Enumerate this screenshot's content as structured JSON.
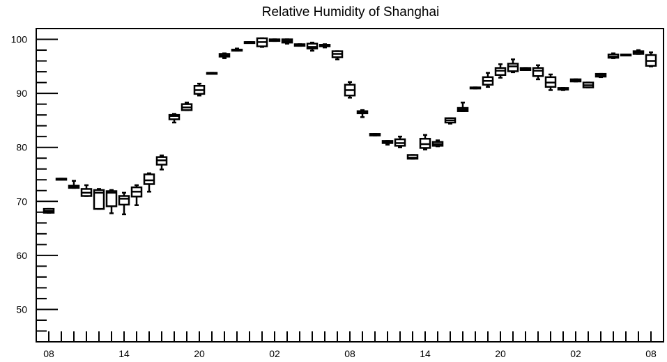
{
  "chart_data": {
    "type": "box",
    "title": "Relative Humidity of Shanghai",
    "xlabel": "",
    "ylabel": "",
    "ylim": [
      44.0,
      102.0
    ],
    "grid": false,
    "legend": "none",
    "x_tick_labels": [
      "08",
      "14",
      "20",
      "02",
      "08",
      "14",
      "20",
      "02",
      "08"
    ],
    "x_tick_positions": [
      0,
      6,
      12,
      18,
      24,
      30,
      36,
      42,
      48
    ],
    "y_ticks": [
      50,
      60,
      70,
      80,
      90,
      100
    ],
    "y_tick_labels": [
      "50",
      "60",
      "70",
      "80",
      "90",
      "100"
    ],
    "boxes": [
      {
        "x": 0,
        "min": 67.9,
        "q1": 67.9,
        "median": 68.2,
        "q3": 68.6,
        "max": 68.6
      },
      {
        "x": 1,
        "min": 74.0,
        "q1": 74.0,
        "median": 74.2,
        "q3": 74.2,
        "max": 74.2
      },
      {
        "x": 2,
        "min": 72.5,
        "q1": 72.5,
        "median": 72.7,
        "q3": 72.9,
        "max": 73.8
      },
      {
        "x": 3,
        "min": 71.0,
        "q1": 71.0,
        "median": 71.6,
        "q3": 72.3,
        "max": 73.0
      },
      {
        "x": 4,
        "min": 68.6,
        "q1": 68.6,
        "median": 71.6,
        "q3": 72.1,
        "max": 72.3
      },
      {
        "x": 5,
        "min": 67.8,
        "q1": 69.1,
        "median": 71.6,
        "q3": 71.9,
        "max": 72.1
      },
      {
        "x": 6,
        "min": 67.6,
        "q1": 69.4,
        "median": 70.5,
        "q3": 71.0,
        "max": 71.6
      },
      {
        "x": 7,
        "min": 69.3,
        "q1": 70.9,
        "median": 71.8,
        "q3": 72.6,
        "max": 73.0
      },
      {
        "x": 8,
        "min": 71.8,
        "q1": 73.2,
        "median": 73.9,
        "q3": 75.0,
        "max": 75.2
      },
      {
        "x": 9,
        "min": 75.9,
        "q1": 76.8,
        "median": 77.6,
        "q3": 78.2,
        "max": 78.5
      },
      {
        "x": 10,
        "min": 84.6,
        "q1": 85.2,
        "median": 85.8,
        "q3": 86.0,
        "max": 86.2
      },
      {
        "x": 11,
        "min": 86.9,
        "q1": 86.9,
        "median": 87.4,
        "q3": 88.0,
        "max": 88.3
      },
      {
        "x": 12,
        "min": 89.6,
        "q1": 89.9,
        "median": 90.6,
        "q3": 91.4,
        "max": 91.8
      },
      {
        "x": 13,
        "min": 93.7,
        "q1": 93.7,
        "median": 93.8,
        "q3": 93.8,
        "max": 93.8
      },
      {
        "x": 14,
        "min": 96.5,
        "q1": 96.8,
        "median": 97.0,
        "q3": 97.3,
        "max": 97.4
      },
      {
        "x": 15,
        "min": 97.9,
        "q1": 97.9,
        "median": 98.1,
        "q3": 98.1,
        "max": 98.3
      },
      {
        "x": 16,
        "min": 99.4,
        "q1": 99.4,
        "median": 99.5,
        "q3": 99.5,
        "max": 99.5
      },
      {
        "x": 17,
        "min": 98.6,
        "q1": 98.7,
        "median": 99.5,
        "q3": 100.2,
        "max": 100.2
      },
      {
        "x": 18,
        "min": 99.7,
        "q1": 99.7,
        "median": 99.8,
        "q3": 100.0,
        "max": 100.0
      },
      {
        "x": 19,
        "min": 99.2,
        "q1": 99.4,
        "median": 99.7,
        "q3": 100.0,
        "max": 100.0
      },
      {
        "x": 20,
        "min": 98.8,
        "q1": 98.8,
        "median": 99.0,
        "q3": 99.1,
        "max": 99.1
      },
      {
        "x": 21,
        "min": 97.9,
        "q1": 98.3,
        "median": 98.6,
        "q3": 99.2,
        "max": 99.4
      },
      {
        "x": 22,
        "min": 98.5,
        "q1": 98.7,
        "median": 98.8,
        "q3": 99.0,
        "max": 99.1
      },
      {
        "x": 23,
        "min": 96.3,
        "q1": 96.7,
        "median": 97.3,
        "q3": 97.8,
        "max": 97.8
      },
      {
        "x": 24,
        "min": 89.2,
        "q1": 89.6,
        "median": 90.6,
        "q3": 91.6,
        "max": 92.1
      },
      {
        "x": 25,
        "min": 85.6,
        "q1": 86.3,
        "median": 86.5,
        "q3": 86.7,
        "max": 86.9
      },
      {
        "x": 26,
        "min": 82.2,
        "q1": 82.2,
        "median": 82.4,
        "q3": 82.5,
        "max": 82.5
      },
      {
        "x": 27,
        "min": 80.5,
        "q1": 80.8,
        "median": 81.0,
        "q3": 81.2,
        "max": 81.2
      },
      {
        "x": 28,
        "min": 80.0,
        "q1": 80.3,
        "median": 80.8,
        "q3": 81.5,
        "max": 82.0
      },
      {
        "x": 29,
        "min": 77.9,
        "q1": 77.9,
        "median": 78.1,
        "q3": 78.6,
        "max": 78.6
      },
      {
        "x": 30,
        "min": 79.6,
        "q1": 79.9,
        "median": 80.6,
        "q3": 81.6,
        "max": 82.3
      },
      {
        "x": 31,
        "min": 80.2,
        "q1": 80.3,
        "median": 80.6,
        "q3": 81.0,
        "max": 81.3
      },
      {
        "x": 32,
        "min": 84.4,
        "q1": 84.6,
        "median": 85.0,
        "q3": 85.4,
        "max": 85.4
      },
      {
        "x": 33,
        "min": 86.7,
        "q1": 86.7,
        "median": 87.0,
        "q3": 87.3,
        "max": 88.3
      },
      {
        "x": 34,
        "min": 90.9,
        "q1": 90.9,
        "median": 91.0,
        "q3": 91.1,
        "max": 91.1
      },
      {
        "x": 35,
        "min": 91.2,
        "q1": 91.6,
        "median": 92.3,
        "q3": 93.0,
        "max": 93.8
      },
      {
        "x": 36,
        "min": 92.9,
        "q1": 93.4,
        "median": 94.2,
        "q3": 94.7,
        "max": 95.4
      },
      {
        "x": 37,
        "min": 93.9,
        "q1": 94.1,
        "median": 95.0,
        "q3": 95.5,
        "max": 96.3
      },
      {
        "x": 38,
        "min": 94.3,
        "q1": 94.3,
        "median": 94.5,
        "q3": 94.7,
        "max": 94.7
      },
      {
        "x": 39,
        "min": 92.6,
        "q1": 93.2,
        "median": 94.2,
        "q3": 94.7,
        "max": 95.2
      },
      {
        "x": 40,
        "min": 90.6,
        "q1": 91.2,
        "median": 92.0,
        "q3": 93.0,
        "max": 93.5
      },
      {
        "x": 41,
        "min": 90.6,
        "q1": 90.7,
        "median": 90.8,
        "q3": 91.0,
        "max": 91.0
      },
      {
        "x": 42,
        "min": 92.2,
        "q1": 92.2,
        "median": 92.4,
        "q3": 92.6,
        "max": 92.6
      },
      {
        "x": 43,
        "min": 91.1,
        "q1": 91.1,
        "median": 91.5,
        "q3": 92.0,
        "max": 92.0
      },
      {
        "x": 44,
        "min": 93.0,
        "q1": 93.1,
        "median": 93.4,
        "q3": 93.6,
        "max": 93.6
      },
      {
        "x": 45,
        "min": 96.5,
        "q1": 96.6,
        "median": 96.8,
        "q3": 97.2,
        "max": 97.4
      },
      {
        "x": 46,
        "min": 97.1,
        "q1": 97.1,
        "median": 97.2,
        "q3": 97.2,
        "max": 97.2
      },
      {
        "x": 47,
        "min": 97.3,
        "q1": 97.3,
        "median": 97.6,
        "q3": 97.8,
        "max": 98.0
      },
      {
        "x": 48,
        "min": 95.0,
        "q1": 95.1,
        "median": 96.0,
        "q3": 97.1,
        "max": 97.6
      }
    ]
  }
}
